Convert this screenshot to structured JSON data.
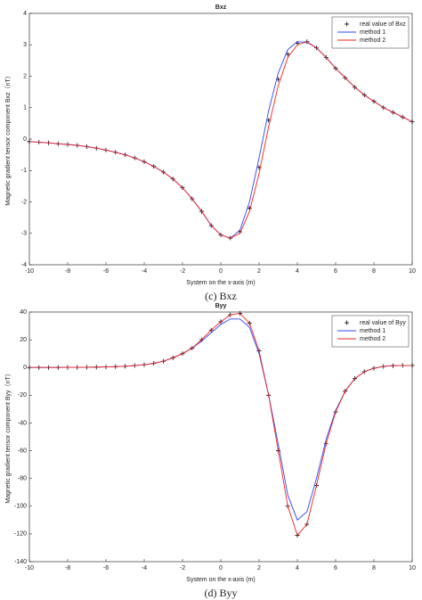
{
  "chart_data": [
    {
      "type": "line",
      "title": "Bxz",
      "xlabel": "System on the x-axis (m)",
      "ylabel": "Magnetic gradient tensor component Bxz（nT）",
      "caption": "(c) Bxz",
      "x": [
        -10,
        -9.5,
        -9,
        -8.5,
        -8,
        -7.5,
        -7,
        -6.5,
        -6,
        -5.5,
        -5,
        -4.5,
        -4,
        -3.5,
        -3,
        -2.5,
        -2,
        -1.5,
        -1,
        -0.5,
        0,
        0.5,
        1,
        1.5,
        2,
        2.5,
        3,
        3.5,
        4,
        4.5,
        5,
        5.5,
        6,
        6.5,
        7,
        7.5,
        8,
        8.5,
        9,
        9.5,
        10
      ],
      "series": [
        {
          "name": "real value of Bxz",
          "color": "#000000",
          "mode": "markers",
          "values": [
            -0.08,
            -0.1,
            -0.12,
            -0.15,
            -0.17,
            -0.2,
            -0.24,
            -0.29,
            -0.35,
            -0.42,
            -0.5,
            -0.6,
            -0.72,
            -0.87,
            -1.05,
            -1.27,
            -1.55,
            -1.9,
            -2.3,
            -2.75,
            -3.05,
            -3.15,
            -2.95,
            -2.2,
            -0.9,
            0.6,
            1.9,
            2.7,
            3.05,
            3.1,
            2.9,
            2.6,
            2.25,
            1.95,
            1.65,
            1.4,
            1.2,
            1.0,
            0.85,
            0.7,
            0.55
          ]
        },
        {
          "name": "method 1",
          "color": "#3344ee",
          "mode": "line",
          "values": [
            -0.08,
            -0.1,
            -0.12,
            -0.15,
            -0.17,
            -0.2,
            -0.24,
            -0.29,
            -0.35,
            -0.42,
            -0.5,
            -0.6,
            -0.72,
            -0.87,
            -1.05,
            -1.27,
            -1.55,
            -1.9,
            -2.3,
            -2.75,
            -3.05,
            -3.15,
            -2.9,
            -2.0,
            -0.6,
            0.9,
            2.1,
            2.85,
            3.1,
            3.08,
            2.9,
            2.6,
            2.25,
            1.95,
            1.65,
            1.4,
            1.2,
            1.0,
            0.85,
            0.7,
            0.55
          ]
        },
        {
          "name": "method 2",
          "color": "#ee2222",
          "mode": "line",
          "values": [
            -0.08,
            -0.1,
            -0.12,
            -0.15,
            -0.17,
            -0.2,
            -0.24,
            -0.29,
            -0.35,
            -0.42,
            -0.5,
            -0.6,
            -0.72,
            -0.87,
            -1.05,
            -1.27,
            -1.55,
            -1.9,
            -2.3,
            -2.75,
            -3.05,
            -3.15,
            -3.0,
            -2.3,
            -1.1,
            0.4,
            1.7,
            2.6,
            3.0,
            3.1,
            2.9,
            2.6,
            2.25,
            1.95,
            1.65,
            1.4,
            1.2,
            1.0,
            0.85,
            0.7,
            0.55
          ]
        }
      ],
      "xlim": [
        -10,
        10
      ],
      "xticks": [
        -10,
        -8,
        -6,
        -4,
        -2,
        0,
        2,
        4,
        6,
        8,
        10
      ],
      "ylim": [
        -4,
        4
      ],
      "yticks": [
        -4,
        -3,
        -2,
        -1,
        0,
        1,
        2,
        3,
        4
      ],
      "legend": "top-right"
    },
    {
      "type": "line",
      "title": "Byy",
      "xlabel": "System on the x-axis (m)",
      "ylabel": "Magnetic gradient tensor component Byy（nT）",
      "caption": "(d) Byy",
      "x": [
        -10,
        -9.5,
        -9,
        -8.5,
        -8,
        -7.5,
        -7,
        -6.5,
        -6,
        -5.5,
        -5,
        -4.5,
        -4,
        -3.5,
        -3,
        -2.5,
        -2,
        -1.5,
        -1,
        -0.5,
        0,
        0.5,
        1,
        1.5,
        2,
        2.5,
        3,
        3.5,
        4,
        4.5,
        5,
        5.5,
        6,
        6.5,
        7,
        7.5,
        8,
        8.5,
        9,
        9.5,
        10
      ],
      "series": [
        {
          "name": "real value of Byy",
          "color": "#000000",
          "mode": "markers",
          "values": [
            0,
            0,
            0,
            0,
            0.1,
            0.1,
            0.2,
            0.3,
            0.4,
            0.6,
            0.9,
            1.4,
            2,
            3,
            4.5,
            7,
            10,
            14,
            20,
            27,
            33,
            38,
            39,
            32,
            12,
            -20,
            -60,
            -100,
            -121,
            -113,
            -85,
            -55,
            -32,
            -17,
            -8,
            -3,
            -0.5,
            0.8,
            1.3,
            1.5,
            1.5
          ]
        },
        {
          "name": "method 1",
          "color": "#3344ee",
          "mode": "line",
          "values": [
            0,
            0,
            0,
            0,
            0.1,
            0.1,
            0.2,
            0.3,
            0.4,
            0.6,
            0.9,
            1.4,
            2,
            3,
            4.5,
            7,
            10,
            14,
            19,
            25,
            31,
            35,
            35,
            29,
            10,
            -20,
            -55,
            -92,
            -110,
            -104,
            -80,
            -52,
            -31,
            -17,
            -8,
            -3,
            -0.5,
            0.8,
            1.3,
            1.5,
            1.5
          ]
        },
        {
          "name": "method 2",
          "color": "#ee2222",
          "mode": "line",
          "values": [
            0,
            0,
            0,
            0,
            0.1,
            0.1,
            0.2,
            0.3,
            0.4,
            0.6,
            0.9,
            1.4,
            2,
            3,
            4.5,
            7,
            10,
            14,
            20,
            27,
            33,
            38,
            39,
            32,
            12,
            -20,
            -60,
            -100,
            -121,
            -113,
            -85,
            -55,
            -32,
            -17,
            -8,
            -3,
            -0.5,
            0.8,
            1.3,
            1.5,
            1.5
          ]
        }
      ],
      "xlim": [
        -10,
        10
      ],
      "xticks": [
        -10,
        -8,
        -6,
        -4,
        -2,
        0,
        2,
        4,
        6,
        8,
        10
      ],
      "ylim": [
        -140,
        40
      ],
      "yticks": [
        -140,
        -120,
        -100,
        -80,
        -60,
        -40,
        -20,
        0,
        20,
        40
      ],
      "legend": "top-right"
    }
  ]
}
